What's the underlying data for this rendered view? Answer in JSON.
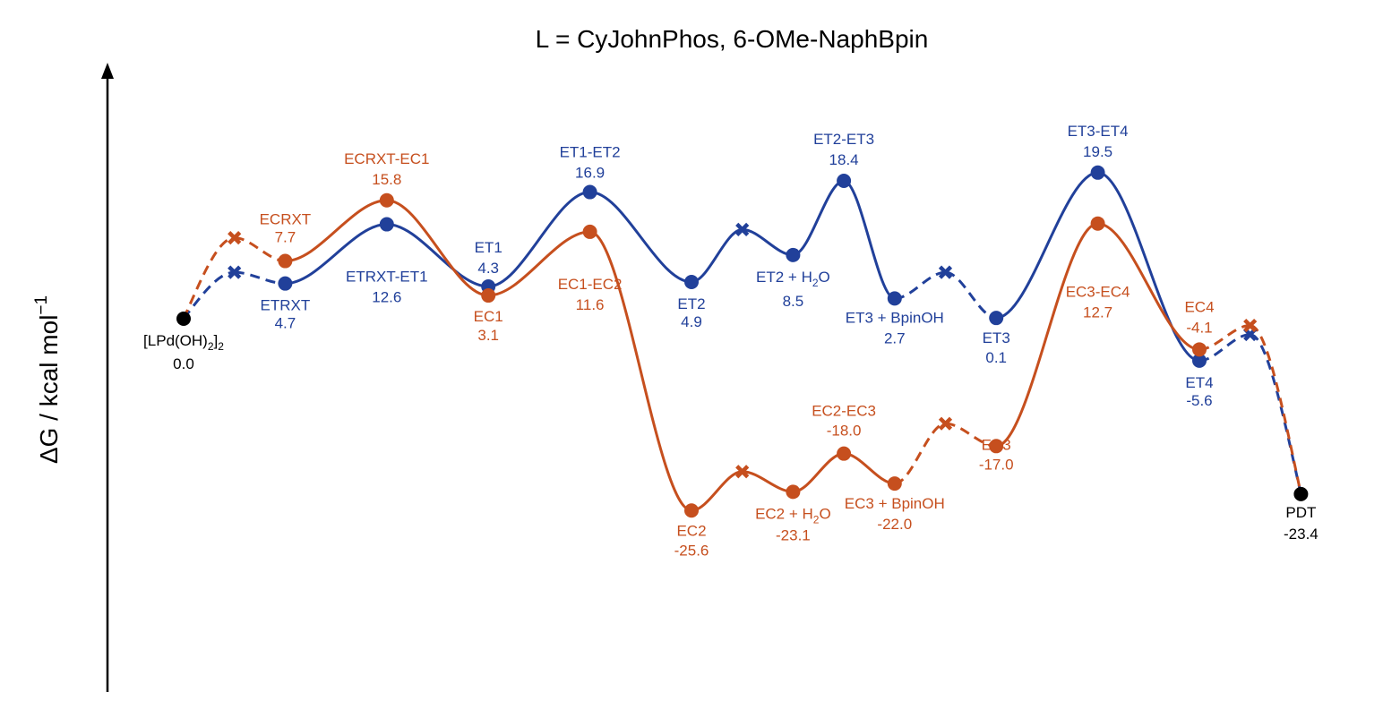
{
  "chart_data": {
    "type": "line",
    "title": "L = CyJohnPhos, 6-OMe-NaphBpin",
    "ylabel": "ΔG / kcal mol",
    "ylabel_sup": "−1",
    "colors": {
      "ET": "#21409A",
      "EC": "#C64F1E",
      "common": "#000000"
    },
    "common_points": [
      {
        "id": "start",
        "x": 0,
        "y": 0.0,
        "label": "[LPd(OH)",
        "label_sub": "2",
        "label_after": "]",
        "label_sub2": "2",
        "value_text": "0.0"
      },
      {
        "id": "pdt",
        "x": 22,
        "y": -23.4,
        "label": "PDT",
        "value_text": "-23.4"
      }
    ],
    "series": [
      {
        "key": "ET",
        "color": "#21409A",
        "points": [
          {
            "x": 0,
            "y": 0.0,
            "marker": "none"
          },
          {
            "x": 1,
            "y": 6.2,
            "marker": "x"
          },
          {
            "x": 2,
            "y": 4.7,
            "marker": "circle",
            "label": "ETRXT",
            "value_text": "4.7"
          },
          {
            "x": 4,
            "y": 12.6,
            "marker": "circle",
            "label": "ETRXT-ET1",
            "value_text": "12.6"
          },
          {
            "x": 6,
            "y": 4.3,
            "marker": "circle",
            "label": "ET1",
            "value_text": "4.3"
          },
          {
            "x": 8,
            "y": 16.9,
            "marker": "circle",
            "label": "ET1-ET2",
            "value_text": "16.9"
          },
          {
            "x": 10,
            "y": 4.9,
            "marker": "circle",
            "label": "ET2",
            "value_text": "4.9"
          },
          {
            "x": 11,
            "y": 11.9,
            "marker": "x"
          },
          {
            "x": 12,
            "y": 8.5,
            "marker": "circle",
            "label": "ET2 + H",
            "label_sub": "2",
            "label_after": "O",
            "value_text": "8.5"
          },
          {
            "x": 13,
            "y": 18.4,
            "marker": "circle",
            "label": "ET2-ET3",
            "value_text": "18.4"
          },
          {
            "x": 14,
            "y": 2.7,
            "marker": "circle",
            "label": "ET3 + BpinOH",
            "value_text": "2.7"
          },
          {
            "x": 15,
            "y": 6.2,
            "marker": "x"
          },
          {
            "x": 16,
            "y": 0.1,
            "marker": "circle",
            "label": "ET3",
            "value_text": "0.1"
          },
          {
            "x": 18,
            "y": 19.5,
            "marker": "circle",
            "label": "ET3-ET4",
            "value_text": "19.5"
          },
          {
            "x": 20,
            "y": -5.6,
            "marker": "circle",
            "label": "ET4",
            "value_text": "-5.6"
          },
          {
            "x": 21,
            "y": -2.1,
            "marker": "x"
          },
          {
            "x": 22,
            "y": -23.4,
            "marker": "none"
          }
        ],
        "dashed_segments": [
          [
            0,
            1
          ],
          [
            1,
            2
          ],
          [
            10,
            11
          ],
          [
            11,
            12
          ],
          [
            14,
            15
          ],
          [
            15,
            16
          ],
          [
            20,
            21
          ],
          [
            21,
            22
          ]
        ]
      },
      {
        "key": "EC",
        "color": "#C64F1E",
        "points": [
          {
            "x": 0,
            "y": 0.0,
            "marker": "none"
          },
          {
            "x": 1,
            "y": 10.8,
            "marker": "x"
          },
          {
            "x": 2,
            "y": 7.7,
            "marker": "circle",
            "label": "ECRXT",
            "value_text": "7.7"
          },
          {
            "x": 4,
            "y": 15.8,
            "marker": "circle",
            "label": "ECRXT-EC1",
            "value_text": "15.8"
          },
          {
            "x": 6,
            "y": 3.1,
            "marker": "circle",
            "label": "EC1",
            "value_text": "3.1"
          },
          {
            "x": 8,
            "y": 11.6,
            "marker": "circle",
            "label": "EC1-EC2",
            "value_text": "11.6"
          },
          {
            "x": 10,
            "y": -25.6,
            "marker": "circle",
            "label": "EC2",
            "value_text": "-25.6"
          },
          {
            "x": 11,
            "y": -20.4,
            "marker": "x"
          },
          {
            "x": 12,
            "y": -23.1,
            "marker": "circle",
            "label": "EC2 + H",
            "label_sub": "2",
            "label_after": "O",
            "value_text": "-23.1"
          },
          {
            "x": 13,
            "y": -18.0,
            "marker": "circle",
            "label": "EC2-EC3",
            "value_text": "-18.0"
          },
          {
            "x": 14,
            "y": -22.0,
            "marker": "circle",
            "label": "EC3 + BpinOH",
            "value_text": "-22.0"
          },
          {
            "x": 15,
            "y": -14.0,
            "marker": "x"
          },
          {
            "x": 16,
            "y": -17.0,
            "marker": "circle",
            "label": "EC3",
            "value_text": "-17.0"
          },
          {
            "x": 18,
            "y": 12.7,
            "marker": "circle",
            "label": "EC3-EC4",
            "value_text": "12.7"
          },
          {
            "x": 20,
            "y": -4.1,
            "marker": "circle",
            "label": "EC4",
            "value_text": "-4.1"
          },
          {
            "x": 21,
            "y": -0.9,
            "marker": "x"
          },
          {
            "x": 22,
            "y": -23.4,
            "marker": "none"
          }
        ],
        "dashed_segments": [
          [
            0,
            1
          ],
          [
            1,
            2
          ],
          [
            10,
            11
          ],
          [
            11,
            12
          ],
          [
            14,
            15
          ],
          [
            15,
            16
          ],
          [
            20,
            21
          ],
          [
            21,
            22
          ]
        ]
      }
    ]
  }
}
